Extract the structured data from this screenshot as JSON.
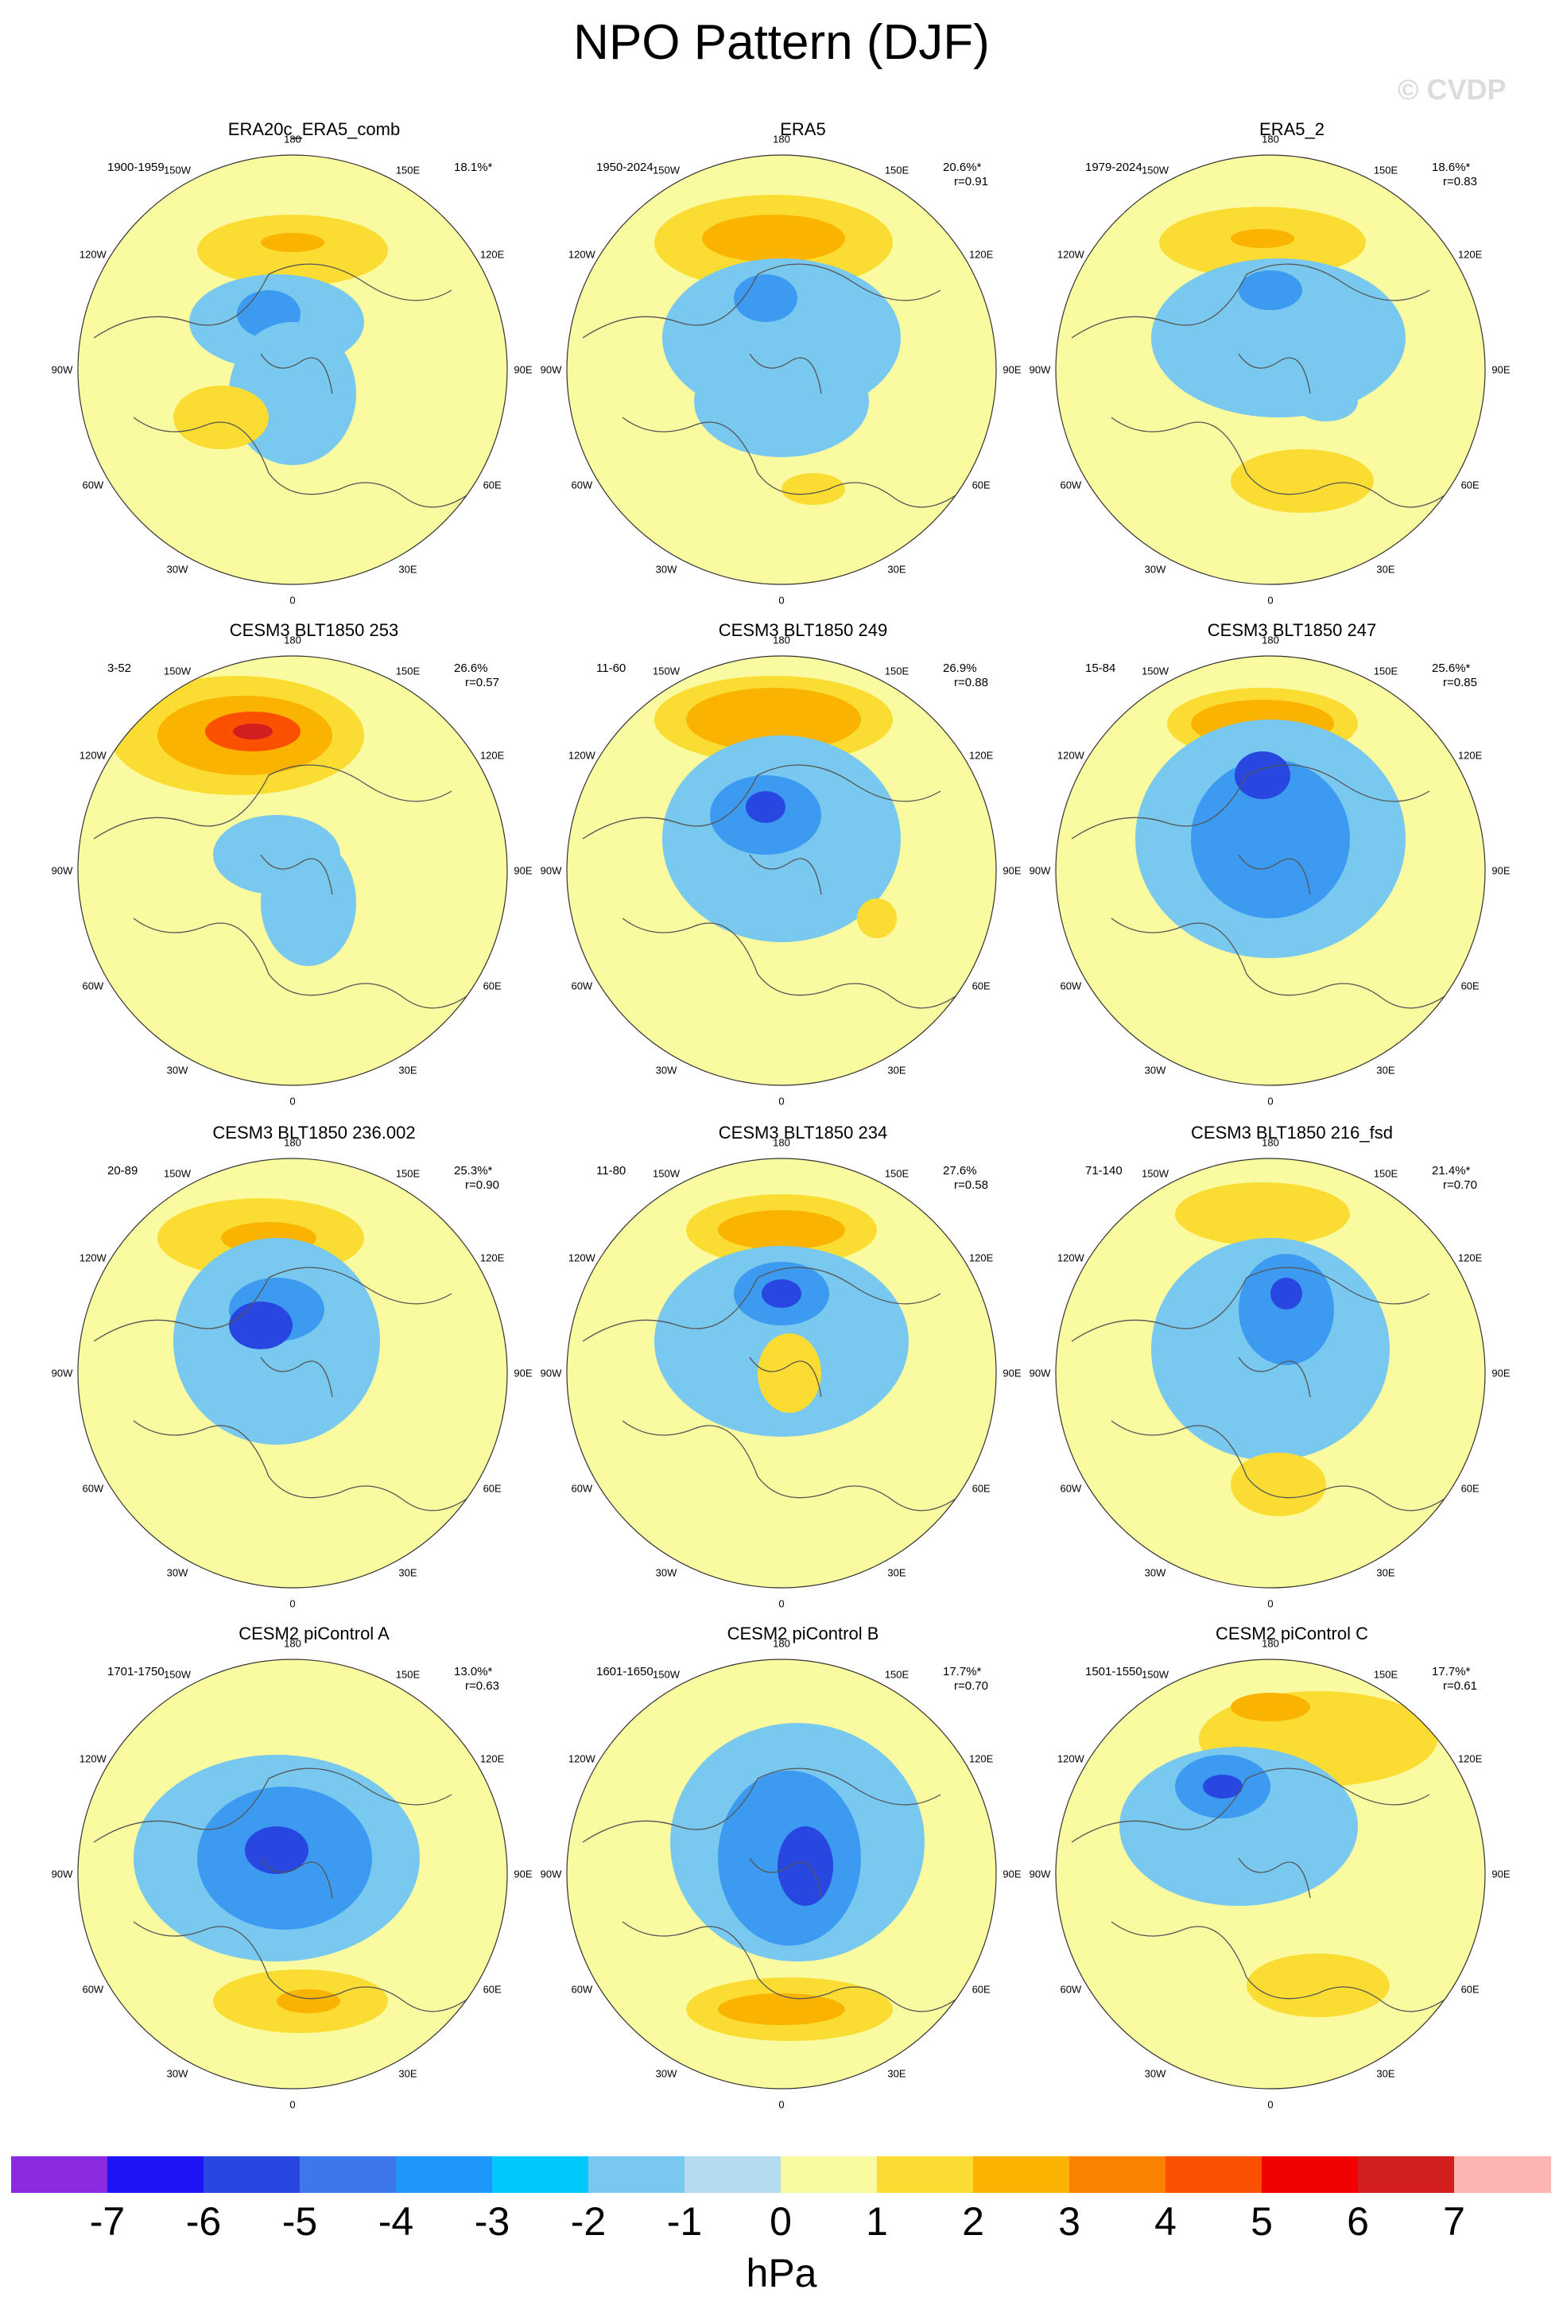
{
  "title": "NPO Pattern (DJF)",
  "watermark": "© CVDP",
  "lon_labels": [
    "180",
    "150E",
    "120E",
    "90E",
    "60E",
    "30E",
    "0",
    "30W",
    "60W",
    "90W",
    "120W",
    "150W"
  ],
  "panels": [
    {
      "title": "ERA20c_ERA5_comb",
      "period": "1900-1959",
      "pct": "18.1%*",
      "r": ""
    },
    {
      "title": "ERA5",
      "period": "1950-2024",
      "pct": "20.6%*",
      "r": "r=0.91"
    },
    {
      "title": "ERA5_2",
      "period": "1979-2024",
      "pct": "18.6%*",
      "r": "r=0.83"
    },
    {
      "title": "CESM3 BLT1850 253",
      "period": "3-52",
      "pct": "26.6%",
      "r": "r=0.57"
    },
    {
      "title": "CESM3 BLT1850 249",
      "period": "11-60",
      "pct": "26.9%",
      "r": "r=0.88"
    },
    {
      "title": "CESM3 BLT1850 247",
      "period": "15-84",
      "pct": "25.6%*",
      "r": "r=0.85"
    },
    {
      "title": "CESM3 BLT1850 236.002",
      "period": "20-89",
      "pct": "25.3%*",
      "r": "r=0.90"
    },
    {
      "title": "CESM3 BLT1850 234",
      "period": "11-80",
      "pct": "27.6%",
      "r": "r=0.58"
    },
    {
      "title": "CESM3 BLT1850 216_fsd",
      "period": "71-140",
      "pct": "21.4%*",
      "r": "r=0.70"
    },
    {
      "title": "CESM2 piControl A",
      "period": "1701-1750",
      "pct": "13.0%*",
      "r": "r=0.63"
    },
    {
      "title": "CESM2 piControl B",
      "period": "1601-1650",
      "pct": "17.7%*",
      "r": "r=0.70"
    },
    {
      "title": "CESM2 piControl C",
      "period": "1501-1550",
      "pct": "17.7%*",
      "r": "r=0.61"
    }
  ],
  "colorbar": {
    "colors": [
      "#8a2be2",
      "#1e14f5",
      "#2846e0",
      "#3c78eb",
      "#1e96fa",
      "#00c8fa",
      "#78c8f0",
      "#b4dcf0",
      "#fafaa0",
      "#fadc32",
      "#fab400",
      "#fa8200",
      "#fa5000",
      "#f00000",
      "#d21e1e",
      "#ffb4b4"
    ],
    "ticks": [
      "-7",
      "-6",
      "-5",
      "-4",
      "-3",
      "-2",
      "-1",
      "0",
      "1",
      "2",
      "3",
      "4",
      "5",
      "6",
      "7"
    ],
    "units": "hPa"
  }
}
